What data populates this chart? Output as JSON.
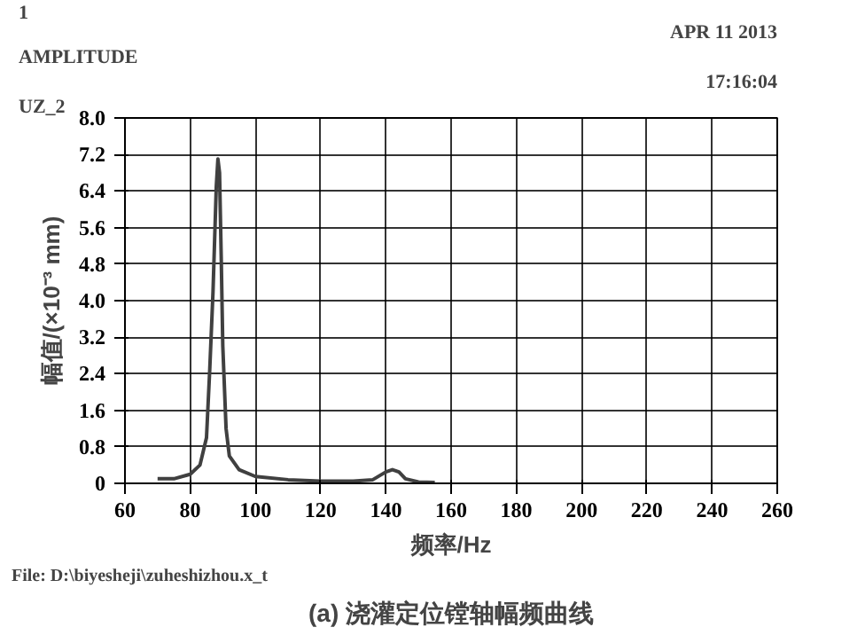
{
  "chart_data": {
    "type": "line",
    "title": "(a) 浇灌定位镗轴幅频曲线",
    "xlabel": "频率/Hz",
    "ylabel": "幅值/(×10⁻³ mm)",
    "annotations": [
      "1",
      "AMPLITUDE",
      "UZ_2",
      "APR 11 2013",
      "17:16:04",
      "File: D:\\biyesheji\\zuheshizhou.x_t"
    ],
    "x": [
      70,
      75,
      80,
      83,
      85,
      86,
      87,
      88,
      88.5,
      89,
      89.5,
      90,
      91,
      92,
      95,
      100,
      110,
      120,
      130,
      136,
      140,
      142,
      144,
      146,
      150,
      155
    ],
    "series": [
      {
        "color": "#404040",
        "values": [
          0.1,
          0.1,
          0.2,
          0.4,
          1.0,
          2.5,
          4.2,
          6.5,
          7.1,
          6.8,
          5.0,
          3.0,
          1.2,
          0.6,
          0.3,
          0.15,
          0.08,
          0.05,
          0.05,
          0.08,
          0.25,
          0.3,
          0.25,
          0.1,
          0.03,
          0.02
        ]
      }
    ],
    "xlim": [
      60,
      260
    ],
    "xticks": [
      60,
      80,
      100,
      120,
      140,
      160,
      180,
      200,
      220,
      240,
      260
    ],
    "ylim": [
      0,
      8
    ],
    "yticks": [
      0,
      0.8,
      1.6,
      2.4,
      3.2,
      {
        "value": 4,
        "label": "4.0"
      },
      4.8,
      5.6,
      6.4,
      7.2,
      {
        "value": 8,
        "label": "8.0"
      }
    ],
    "grid": true,
    "marker": "none",
    "line_style": "solid"
  }
}
